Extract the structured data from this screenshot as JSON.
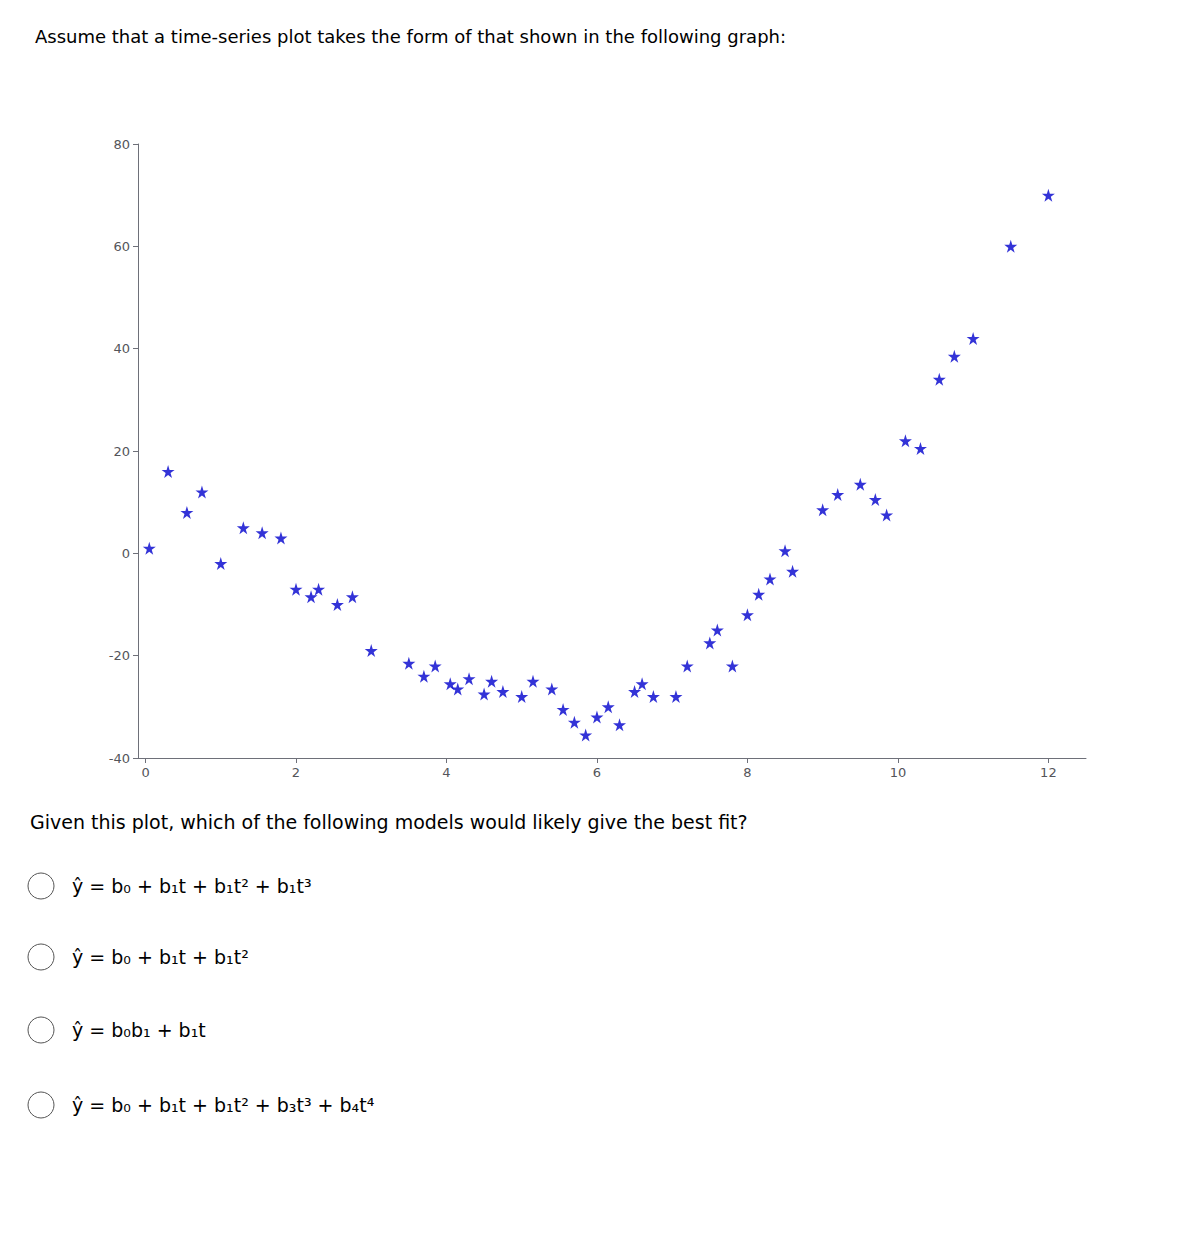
{
  "chart_data": {
    "type": "scatter",
    "title": "Assume that a time-series plot takes the form of that shown in the following graph:",
    "x": [
      0.05,
      0.3,
      0.55,
      0.75,
      1.0,
      1.3,
      1.55,
      1.8,
      2.0,
      2.2,
      2.3,
      2.55,
      2.75,
      3.0,
      3.5,
      3.7,
      3.85,
      4.05,
      4.15,
      4.3,
      4.5,
      4.6,
      4.75,
      5.0,
      5.15,
      5.4,
      5.55,
      5.7,
      5.85,
      6.0,
      6.15,
      6.3,
      6.5,
      6.6,
      6.75,
      7.05,
      7.2,
      7.5,
      7.6,
      7.8,
      8.0,
      8.15,
      8.3,
      8.5,
      8.6,
      9.0,
      9.2,
      9.5,
      9.7,
      9.85,
      10.1,
      10.3,
      10.55,
      10.75,
      11.0,
      11.5,
      12.0
    ],
    "values": [
      1.0,
      16.0,
      8.0,
      12.0,
      -2.0,
      5.0,
      4.0,
      3.0,
      -7.0,
      -8.5,
      -7.0,
      -10.0,
      -8.5,
      -19.0,
      -21.5,
      -24.0,
      -22.0,
      -25.5,
      -26.5,
      -24.5,
      -27.5,
      -25.0,
      -27.0,
      -28.0,
      -25.0,
      -26.5,
      -30.5,
      -33.0,
      -35.5,
      -32.0,
      -30.0,
      -33.5,
      -27.0,
      -25.5,
      -28.0,
      -28.0,
      -22.0,
      -17.5,
      -15.0,
      -22.0,
      -12.0,
      -8.0,
      -5.0,
      0.5,
      -3.5,
      8.5,
      11.5,
      13.5,
      10.5,
      7.5,
      22.0,
      20.5,
      34.0,
      38.5,
      42.0,
      60.0,
      70.0
    ],
    "color": "#0000CD",
    "marker": "star",
    "xlim": [
      -0.1,
      12.5
    ],
    "ylim": [
      -40,
      80
    ],
    "xticks": [
      0,
      2,
      4,
      6,
      8,
      10,
      12
    ],
    "yticks": [
      -40,
      -20,
      0,
      20,
      40,
      60,
      80
    ],
    "grid": false,
    "annotations": [
      "Given this plot, which of the following models would likely give the best fit?",
      "ŷ = b₀ + b₁t + b₁t² + b₁t³",
      "ŷ = b₀ + b₁t + b₁t²",
      "ŷ = b₀b₁ + b₁t",
      "ŷ = b₀ + b₁t + b₁t² + b₃t³ + b₄t⁴"
    ]
  }
}
